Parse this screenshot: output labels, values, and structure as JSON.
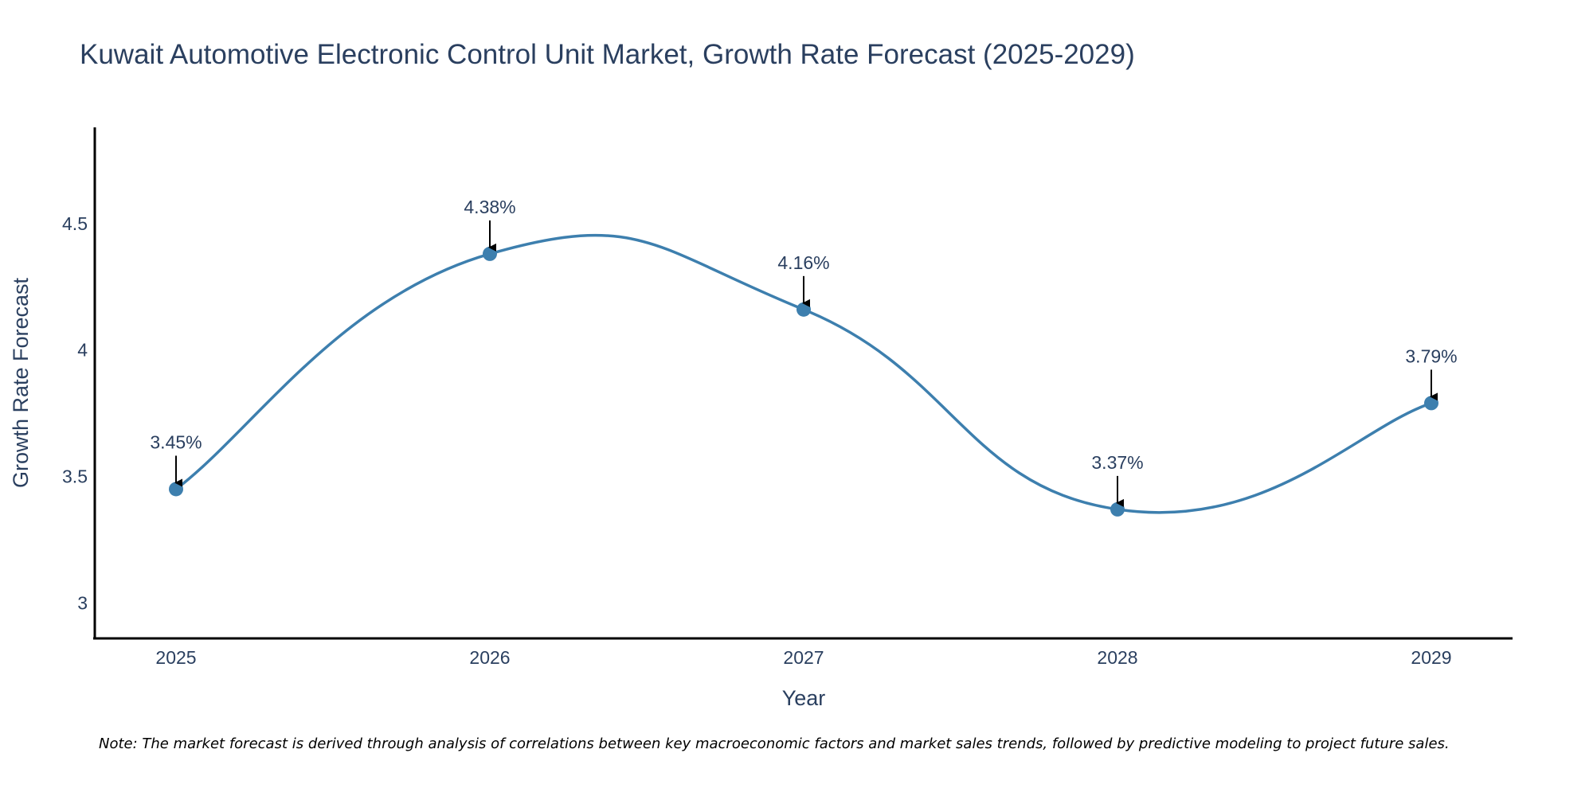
{
  "chart_data": {
    "type": "line",
    "title": "Kuwait Automotive Electronic Control Unit Market, Growth Rate Forecast (2025-2029)",
    "xlabel": "Year",
    "ylabel": "Growth Rate Forecast",
    "categories": [
      "2025",
      "2026",
      "2027",
      "2028",
      "2029"
    ],
    "values": [
      3.45,
      4.38,
      4.16,
      3.37,
      3.79
    ],
    "data_labels": [
      "3.45%",
      "4.38%",
      "4.16%",
      "3.37%",
      "3.79%"
    ],
    "y_ticks": [
      3,
      3.5,
      4,
      4.5
    ],
    "y_tick_labels": [
      "3",
      "3.5",
      "4",
      "4.5"
    ],
    "ylim": [
      2.86,
      4.88
    ],
    "grid": false,
    "line_shape": "spline",
    "series_color": "#3d7fae",
    "arrow_color": "#000000",
    "note": "Note: The market forecast is derived through analysis of correlations between key macroeconomic factors and market sales trends, followed by predictive modeling to project future sales."
  }
}
